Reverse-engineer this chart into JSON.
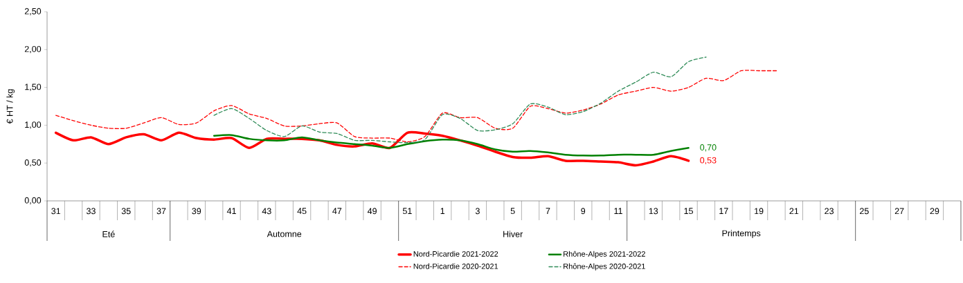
{
  "chart_data": {
    "type": "line",
    "ylabel": "€ HT / kg",
    "categories": [
      "31",
      null,
      "33",
      null,
      "35",
      null,
      "37",
      null,
      "39",
      null,
      "41",
      null,
      "43",
      null,
      "45",
      null,
      "47",
      null,
      "49",
      null,
      "51",
      null,
      "1",
      null,
      "3",
      null,
      "5",
      null,
      "7",
      null,
      "9",
      null,
      "11",
      null,
      "13",
      null,
      "15",
      null,
      "17",
      null,
      "19",
      null,
      "21",
      null,
      "23",
      null,
      "25",
      null,
      "27",
      null,
      "29",
      null
    ],
    "series": [
      {
        "name": "Nord-Picardie 2021-2022",
        "color": "#ff0000",
        "line_style": "solid",
        "values": [
          0.9,
          0.8,
          0.84,
          0.75,
          0.84,
          0.88,
          0.8,
          0.9,
          0.83,
          0.81,
          0.83,
          0.7,
          0.82,
          0.82,
          0.82,
          0.8,
          0.74,
          0.72,
          0.76,
          0.7,
          0.9,
          0.89,
          0.86,
          0.8,
          0.73,
          0.65,
          0.58,
          0.57,
          0.59,
          0.53,
          0.53,
          0.52,
          0.51,
          0.47,
          0.52,
          0.59,
          0.53,
          null,
          null,
          null,
          null,
          null,
          null,
          null,
          null,
          null,
          null,
          null,
          null,
          null,
          null,
          null
        ],
        "value_labels": [
          null,
          null,
          null,
          null,
          null,
          null,
          null,
          null,
          null,
          null,
          null,
          null,
          null,
          null,
          null,
          null,
          null,
          null,
          null,
          null,
          null,
          null,
          null,
          null,
          null,
          null,
          null,
          null,
          null,
          null,
          null,
          null,
          null,
          null,
          null,
          null,
          "0,53",
          null,
          null,
          null,
          null,
          null,
          null,
          null,
          null,
          null,
          null,
          null,
          null,
          null,
          null,
          null
        ]
      },
      {
        "name": "Rhône-Alpes 2021-2022",
        "color": "#008000",
        "line_style": "solid",
        "values": [
          null,
          null,
          null,
          null,
          null,
          null,
          null,
          null,
          null,
          0.86,
          0.87,
          0.82,
          0.8,
          0.8,
          0.84,
          0.8,
          0.77,
          0.75,
          0.73,
          0.7,
          0.75,
          0.79,
          0.81,
          0.8,
          0.75,
          0.68,
          0.65,
          0.66,
          0.64,
          0.61,
          0.6,
          0.6,
          0.61,
          0.61,
          0.61,
          0.66,
          0.7,
          null,
          null,
          null,
          null,
          null,
          null,
          null,
          null,
          null,
          null,
          null,
          null,
          null,
          null,
          null
        ],
        "value_labels": [
          null,
          null,
          null,
          null,
          null,
          null,
          null,
          null,
          null,
          null,
          null,
          null,
          null,
          null,
          null,
          null,
          null,
          null,
          null,
          null,
          null,
          null,
          null,
          null,
          null,
          null,
          null,
          null,
          null,
          null,
          null,
          null,
          null,
          null,
          null,
          null,
          "0,70",
          null,
          null,
          null,
          null,
          null,
          null,
          null,
          null,
          null,
          null,
          null,
          null,
          null,
          null,
          null
        ]
      },
      {
        "name": "Nord-Picardie 2020-2021",
        "color": "#ff0000",
        "line_style": "dashed",
        "values": [
          1.13,
          1.06,
          1.0,
          0.96,
          0.96,
          1.03,
          1.1,
          1.01,
          1.03,
          1.19,
          1.26,
          1.15,
          1.09,
          0.99,
          0.99,
          1.02,
          1.03,
          0.85,
          0.83,
          0.83,
          0.78,
          0.85,
          1.16,
          1.1,
          1.1,
          0.96,
          0.96,
          1.25,
          1.22,
          1.16,
          1.2,
          1.28,
          1.4,
          1.45,
          1.5,
          1.45,
          1.5,
          1.62,
          1.59,
          1.72,
          1.72,
          1.72,
          null,
          null,
          null,
          null,
          null,
          null,
          null,
          null,
          null,
          null
        ]
      },
      {
        "name": "Rhône-Alpes 2020-2021",
        "color": "#2e8b57",
        "line_style": "dashed",
        "values": [
          null,
          null,
          null,
          null,
          null,
          null,
          null,
          null,
          null,
          1.13,
          1.22,
          1.09,
          0.93,
          0.85,
          0.99,
          0.91,
          0.89,
          0.8,
          0.8,
          0.78,
          0.77,
          0.81,
          1.14,
          1.09,
          0.93,
          0.94,
          1.02,
          1.28,
          1.24,
          1.14,
          1.18,
          1.29,
          1.45,
          1.57,
          1.7,
          1.64,
          1.84,
          1.9,
          null,
          null,
          null,
          null,
          null,
          null,
          null,
          null,
          null,
          null,
          null,
          null,
          null,
          null
        ]
      }
    ],
    "annotations": [
      "Eté",
      "Automne",
      "Hiver",
      "Printemps"
    ],
    "ylim": [
      0,
      2.5
    ],
    "yticks": [
      {
        "value": 0,
        "label": "0,00"
      },
      {
        "value": 0.5,
        "label": "0,50"
      },
      {
        "value": 1,
        "label": "1,00"
      },
      {
        "value": 1.5,
        "label": "1,50"
      },
      {
        "value": 2,
        "label": "2,00"
      },
      {
        "value": 2.5,
        "label": "2,50"
      }
    ],
    "marker": "none",
    "legend": "bottom"
  }
}
